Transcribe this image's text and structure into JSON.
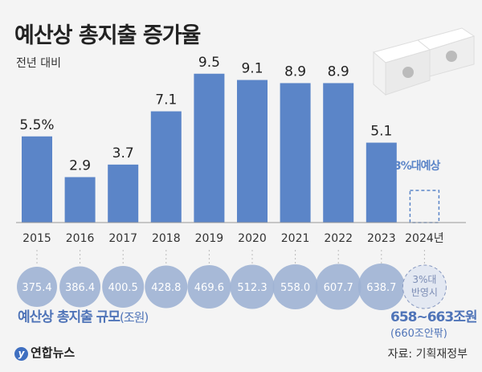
{
  "title": "예산상 총지출 증가율",
  "subtitle": "전년 대비",
  "chart_data": {
    "type": "bar",
    "title": "예산상 총지출 증가율",
    "subtitle": "전년 대비",
    "categories": [
      "2015",
      "2016",
      "2017",
      "2018",
      "2019",
      "2020",
      "2021",
      "2022",
      "2023",
      "2024년"
    ],
    "values": [
      5.5,
      2.9,
      3.7,
      7.1,
      9.5,
      9.1,
      8.9,
      8.9,
      5.1,
      3
    ],
    "data_labels": [
      "5.5%",
      "2.9",
      "3.7",
      "7.1",
      "9.5",
      "9.1",
      "8.9",
      "8.9",
      "5.1",
      "3%대예상"
    ],
    "projected_index": 9,
    "bar_color": "#5b85c8",
    "grid": false,
    "ylim": [
      0,
      10
    ],
    "total_size": {
      "label": "예산상 총지출 규모",
      "unit": "(조원)",
      "values": [
        "375.4",
        "386.4",
        "400.5",
        "428.8",
        "469.6",
        "512.3",
        "558.0",
        "607.7",
        "638.7"
      ],
      "projected_line1": "3%대",
      "projected_line2": "반영시",
      "projected_range": "658~663조원",
      "projected_note": "(660조안팎)",
      "circle_color": "#9fb2d4"
    }
  },
  "logo": "연합뉴스",
  "source": "자료: 기획재정부",
  "icons": {
    "money": "money-stack-icon"
  }
}
